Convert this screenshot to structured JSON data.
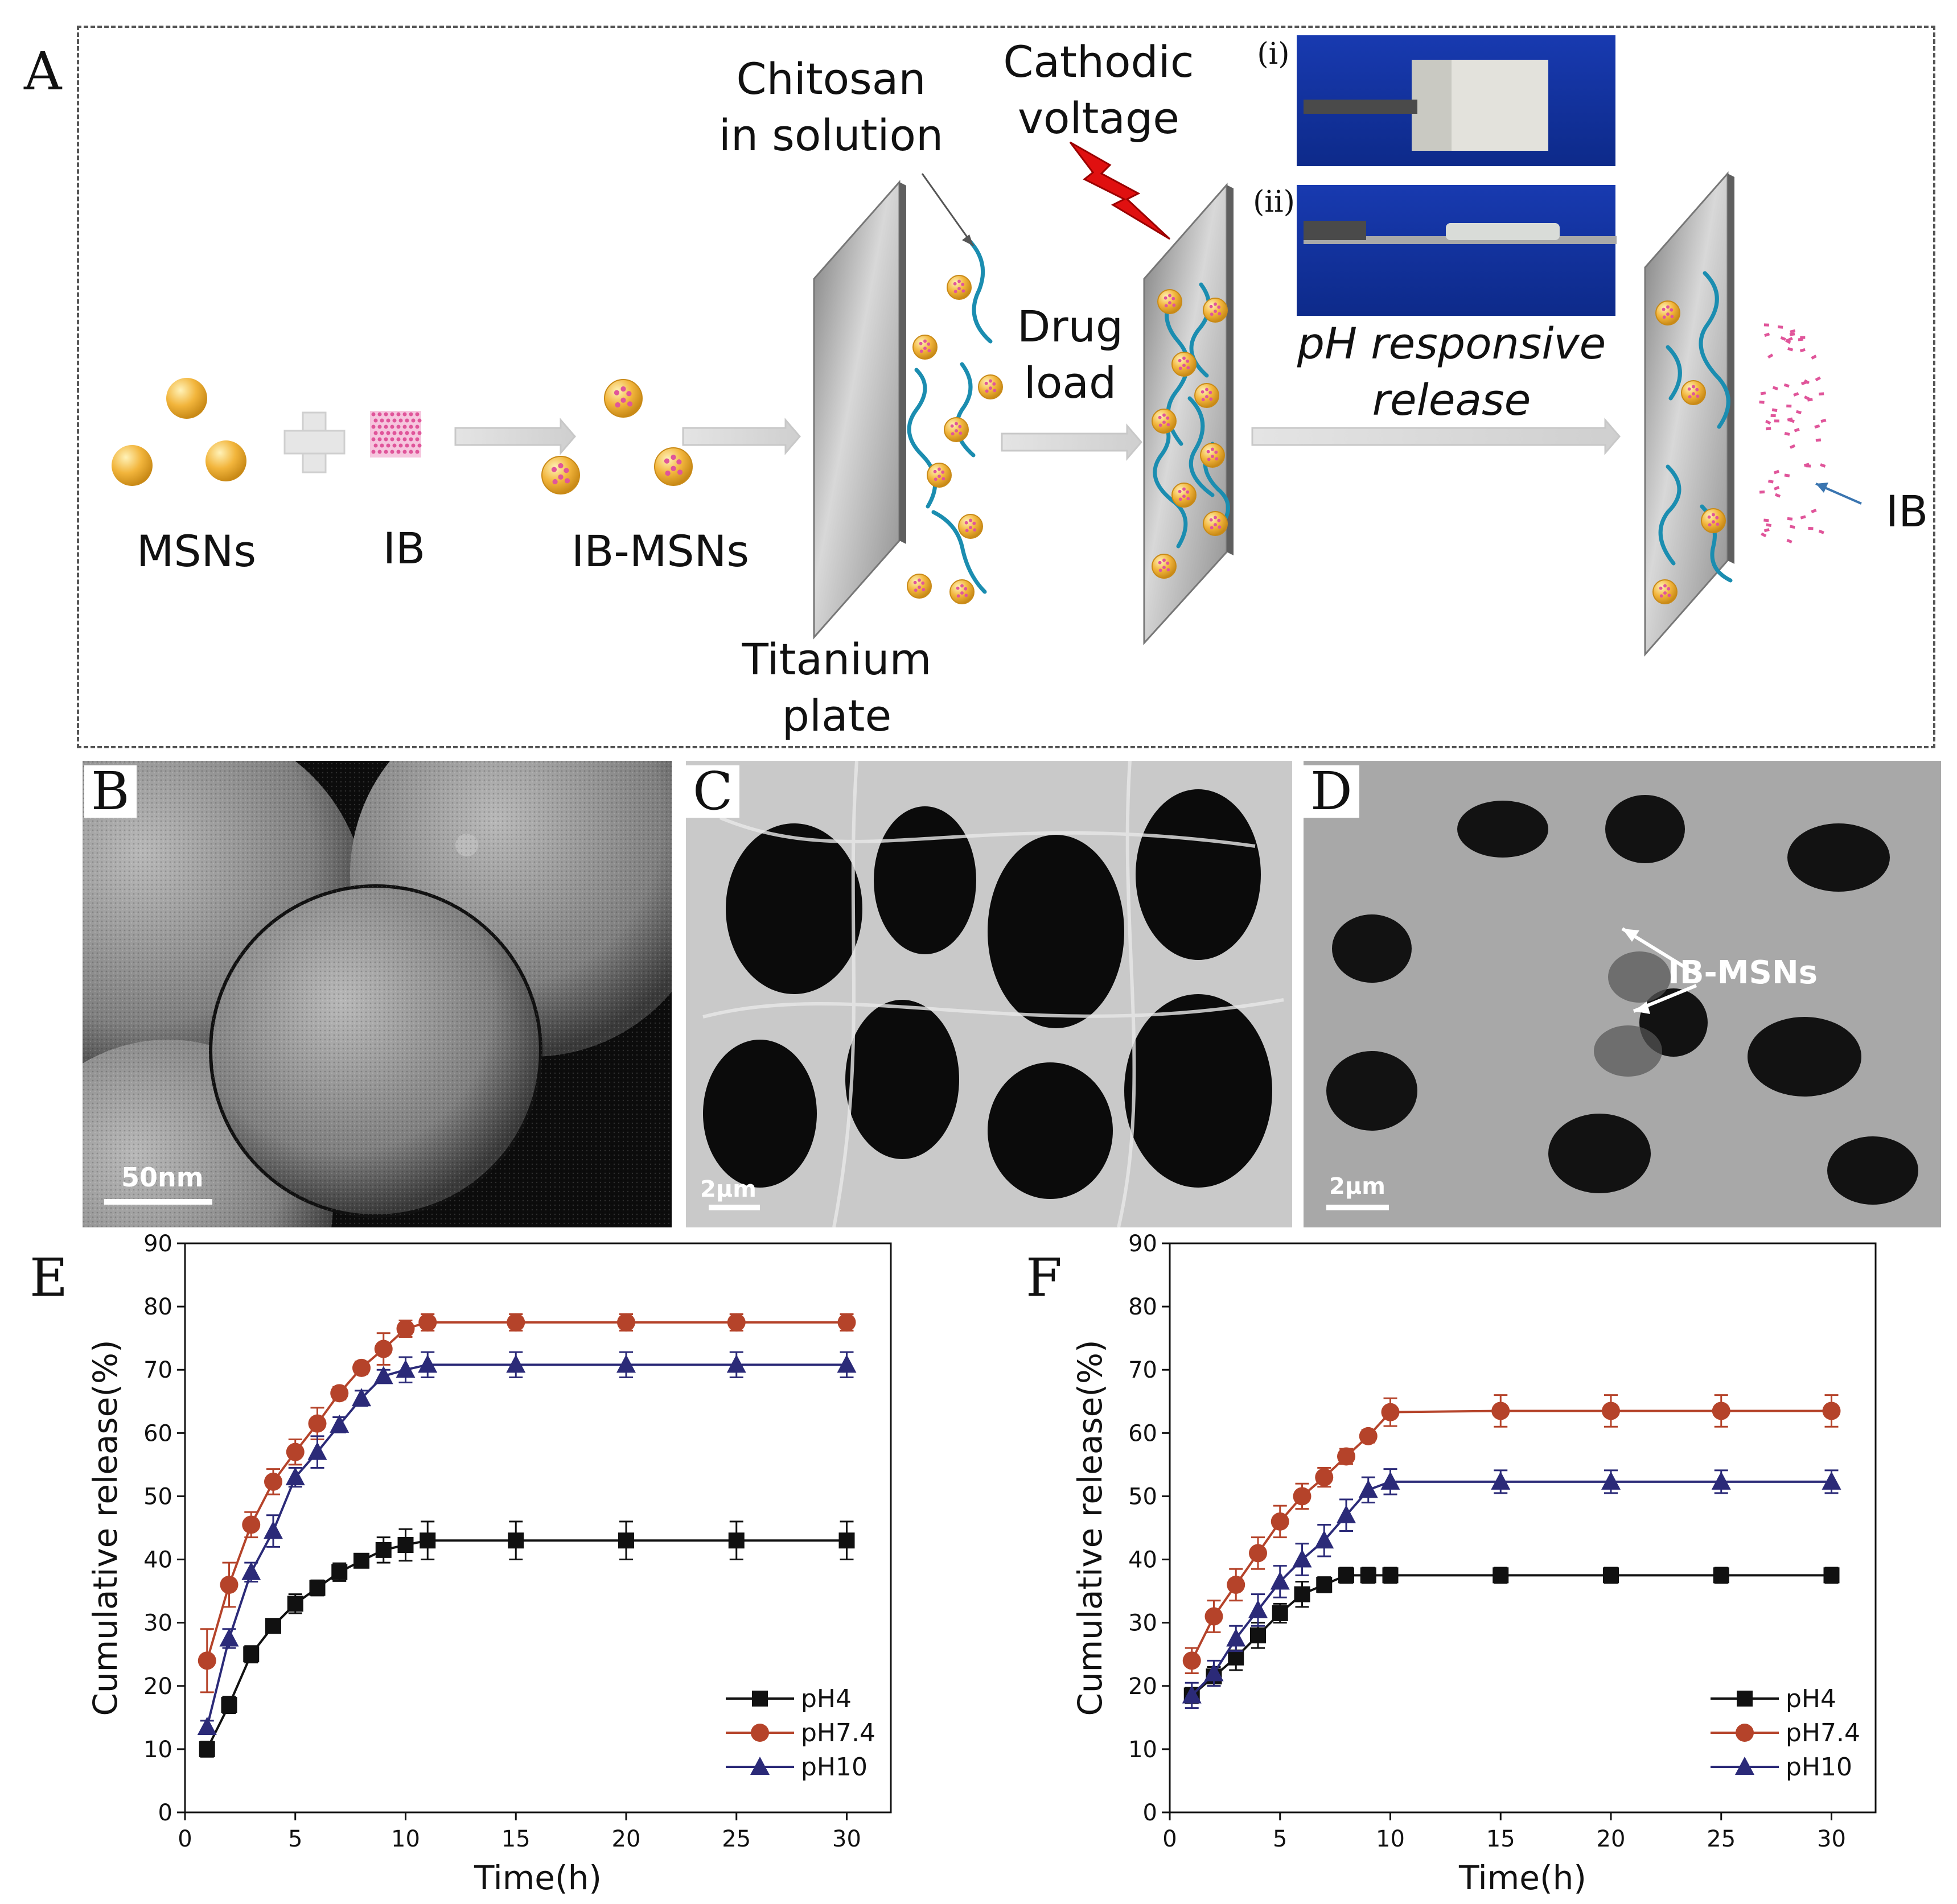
{
  "panel_letters": {
    "a": "A",
    "b": "B",
    "c": "C",
    "d": "D",
    "e": "E",
    "f": "F"
  },
  "schematic": {
    "msns_label": "MSNs",
    "ib_label": "IB",
    "ib_msns_label": "IB-MSNs",
    "titanium_label": "Titanium\nplate",
    "chitosan_label": "Chitosan\nin solution",
    "cathodic_label": "Cathodic\nvoltage",
    "drug_load_label": "Drug\nload",
    "ph_release_label": "pH  responsive\nrelease",
    "ib_release_label": "IB",
    "photo_i_label": "(i)",
    "photo_ii_label": "(ii)"
  },
  "micrographs": {
    "b_scale": "50nm",
    "c_scale": "2μm",
    "d_scale": "2μm",
    "d_annotation": "IB-MSNs"
  },
  "colors": {
    "ph4": "#111111",
    "ph74": "#b5432a",
    "ph10": "#2b2a78",
    "particle": "#f2b53c",
    "fiber": "#1b8db0",
    "ib_dots": "#e0559a",
    "bolt": "#e01010",
    "photo_bg": "#1636a8"
  },
  "chart_data": [
    {
      "type": "line",
      "xlabel": "Time(h)",
      "ylabel": "Cumulative release(%)",
      "xlim": [
        0,
        32
      ],
      "ylim": [
        0,
        90
      ],
      "xticks": [
        0,
        5,
        10,
        15,
        20,
        25,
        30
      ],
      "yticks": [
        0,
        10,
        20,
        30,
        40,
        50,
        60,
        70,
        80,
        90
      ],
      "legend_position": "bottom-right",
      "series": [
        {
          "name": "pH4",
          "marker": "square",
          "color_key": "ph4",
          "x": [
            1,
            2,
            3,
            4,
            5,
            6,
            7,
            8,
            9,
            10,
            11,
            15,
            20,
            25,
            30
          ],
          "y": [
            10,
            17,
            25,
            29.5,
            33,
            35.5,
            38,
            39.8,
            41.5,
            42.3,
            43,
            43,
            43,
            43,
            43
          ],
          "err": [
            1.2,
            1.3,
            1.3,
            1,
            1.5,
            1.2,
            1.4,
            1,
            2,
            2.5,
            3,
            3,
            3,
            3,
            3
          ]
        },
        {
          "name": "pH7.4",
          "marker": "circle",
          "color_key": "ph74",
          "x": [
            1,
            2,
            3,
            4,
            5,
            6,
            7,
            8,
            9,
            10,
            11,
            15,
            20,
            25,
            30
          ],
          "y": [
            24,
            36,
            45.5,
            52.3,
            57,
            61.5,
            66.3,
            70.3,
            73.3,
            76.5,
            77.5,
            77.5,
            77.5,
            77.5,
            77.5
          ],
          "err": [
            5,
            3.5,
            2,
            2,
            2,
            2.5,
            1,
            1,
            2.5,
            1.3,
            1.3,
            1.3,
            1.3,
            1.3,
            1.3
          ]
        },
        {
          "name": "pH10",
          "marker": "triangle",
          "color_key": "ph10",
          "x": [
            1,
            2,
            3,
            4,
            5,
            6,
            7,
            8,
            9,
            10,
            11,
            15,
            20,
            25,
            30
          ],
          "y": [
            13.5,
            27.5,
            38,
            44.5,
            53,
            57,
            61.3,
            65.5,
            69,
            70,
            70.8,
            70.8,
            70.8,
            70.8,
            70.8
          ],
          "err": [
            1,
            1.5,
            1.5,
            2.5,
            1.5,
            2.5,
            1.2,
            1.2,
            1,
            2,
            2,
            2,
            2,
            2,
            2
          ]
        }
      ]
    },
    {
      "type": "line",
      "xlabel": "Time(h)",
      "ylabel": "Cumulative release(%)",
      "xlim": [
        0,
        32
      ],
      "ylim": [
        0,
        90
      ],
      "xticks": [
        0,
        5,
        10,
        15,
        20,
        25,
        30
      ],
      "yticks": [
        0,
        10,
        20,
        30,
        40,
        50,
        60,
        70,
        80,
        90
      ],
      "legend_position": "bottom-right",
      "series": [
        {
          "name": "pH4",
          "marker": "square",
          "color_key": "ph4",
          "x": [
            1,
            2,
            3,
            4,
            5,
            6,
            7,
            8,
            9,
            10,
            15,
            20,
            25,
            30
          ],
          "y": [
            18.5,
            21.5,
            24.5,
            28,
            31.5,
            34.5,
            36,
            37.5,
            37.5,
            37.5,
            37.5,
            37.5,
            37.5,
            37.5
          ],
          "err": [
            1.2,
            1.5,
            2,
            2,
            1.5,
            2,
            1.2,
            1.2,
            1.2,
            1.2,
            1.2,
            1.2,
            1.2,
            1.2
          ]
        },
        {
          "name": "pH7.4",
          "marker": "circle",
          "color_key": "ph74",
          "x": [
            1,
            2,
            3,
            4,
            5,
            6,
            7,
            8,
            9,
            10,
            15,
            20,
            25,
            30
          ],
          "y": [
            24,
            31,
            36,
            41,
            46,
            50,
            53,
            56.3,
            59.5,
            63.3,
            63.5,
            63.5,
            63.5,
            63.5
          ],
          "err": [
            2,
            2.5,
            2.5,
            2.5,
            2.5,
            2,
            1.5,
            1.2,
            1,
            2.2,
            2.5,
            2.5,
            2.5,
            2.5
          ]
        },
        {
          "name": "pH10",
          "marker": "triangle",
          "color_key": "ph10",
          "x": [
            1,
            2,
            3,
            4,
            5,
            6,
            7,
            8,
            9,
            10,
            15,
            20,
            25,
            30
          ],
          "y": [
            18.5,
            22,
            27.5,
            32,
            36.5,
            40,
            43,
            47,
            51,
            52.3,
            52.3,
            52.3,
            52.3,
            52.3
          ],
          "err": [
            2,
            2,
            2,
            2.5,
            2.5,
            2.5,
            2.5,
            2.5,
            2,
            2,
            1.8,
            1.8,
            1.8,
            1.8
          ]
        }
      ]
    }
  ]
}
